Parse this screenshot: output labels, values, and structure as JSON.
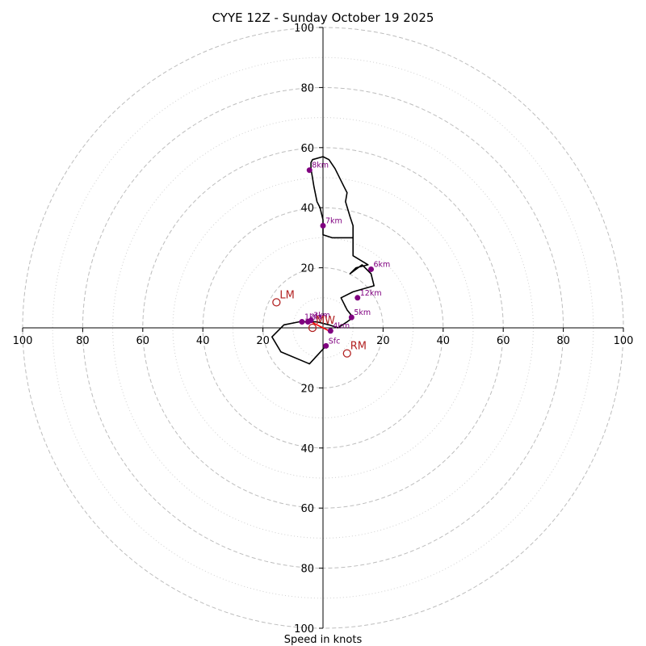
{
  "chart_data": {
    "type": "hodograph",
    "title": "CYYE 12Z - Sunday October 19 2025",
    "xlabel": "Speed in knots",
    "units": "knots",
    "range": [
      -100,
      100
    ],
    "rings": {
      "major": [
        20,
        40,
        60,
        80,
        100
      ],
      "minor": [
        10,
        30,
        50,
        70,
        90
      ]
    },
    "x_tick_labels": [
      "100",
      "80",
      "60",
      "40",
      "20",
      "20",
      "40",
      "60",
      "80",
      "100"
    ],
    "y_tick_labels": [
      "100",
      "80",
      "60",
      "40",
      "20",
      "20",
      "40",
      "60",
      "80",
      "100"
    ],
    "trace": [
      [
        1,
        -6
      ],
      [
        -4.5,
        -12
      ],
      [
        -14,
        -8
      ],
      [
        -17,
        -3
      ],
      [
        -13,
        1
      ],
      [
        -8,
        2
      ],
      [
        -6,
        2
      ],
      [
        -4,
        2
      ],
      [
        -2,
        2
      ],
      [
        2,
        1
      ],
      [
        5,
        0
      ],
      [
        8,
        2
      ],
      [
        10,
        3.5
      ],
      [
        8,
        6
      ],
      [
        6,
        10
      ],
      [
        10,
        12
      ],
      [
        17,
        14
      ],
      [
        16,
        18
      ],
      [
        13,
        21
      ],
      [
        9,
        18
      ],
      [
        11,
        20
      ],
      [
        15,
        21
      ],
      [
        10,
        24
      ],
      [
        10,
        30
      ],
      [
        3,
        30
      ],
      [
        0,
        31
      ],
      [
        0,
        36
      ],
      [
        -1,
        40
      ],
      [
        -2,
        42
      ],
      [
        -3,
        47
      ],
      [
        -4,
        53
      ],
      [
        -4,
        55
      ],
      [
        -3.5,
        56
      ],
      [
        0,
        57
      ],
      [
        2,
        56
      ],
      [
        4,
        53
      ],
      [
        7,
        47
      ],
      [
        8,
        45
      ],
      [
        7.5,
        42
      ],
      [
        9,
        37
      ],
      [
        10,
        34
      ],
      [
        10,
        30
      ]
    ],
    "height_markers": [
      {
        "label": "Sfc",
        "u": 1,
        "v": -6
      },
      {
        "label": "1km",
        "u": -7,
        "v": 2
      },
      {
        "label": "2km",
        "u": -5,
        "v": 2
      },
      {
        "label": "3km",
        "u": -4,
        "v": 2.5
      },
      {
        "label": "4km",
        "u": 2.5,
        "v": -1
      },
      {
        "label": "5km",
        "u": 9.5,
        "v": 3.5
      },
      {
        "label": "6km",
        "u": 16,
        "v": 19.5
      },
      {
        "label": "7km",
        "u": 0,
        "v": 34
      },
      {
        "label": "8km",
        "u": -4.5,
        "v": 52.5
      },
      {
        "label": "12km",
        "u": 11.5,
        "v": 10
      }
    ],
    "storm_motion": [
      {
        "label": "LM",
        "u": -15.5,
        "v": 8.5
      },
      {
        "label": "RM",
        "u": 8,
        "v": -8.5
      },
      {
        "label": "MW",
        "u": -3.5,
        "v": 0
      }
    ],
    "shear_vector": {
      "from": [
        -4,
        2
      ],
      "to": [
        2,
        -1
      ]
    },
    "colors": {
      "trace": "#000000",
      "height_marker": "#800080",
      "storm_motion": "#b22222",
      "shear": "#ff0000",
      "major_ring": "#bdbdbd",
      "minor_ring": "#d0d0d0",
      "axis": "#000000"
    }
  }
}
